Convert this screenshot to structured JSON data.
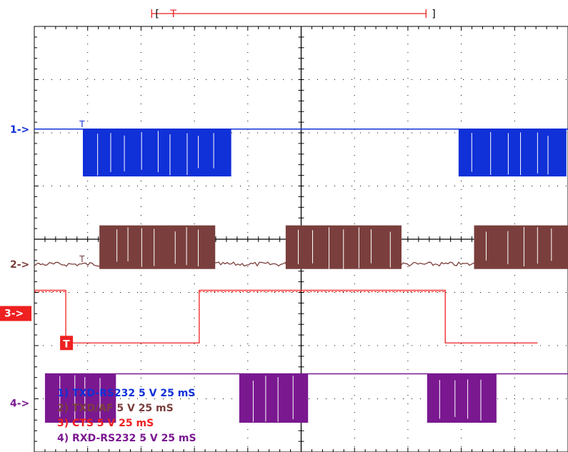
{
  "chart_data": {
    "type": "line",
    "title": "",
    "x_divisions": 10,
    "y_divisions": 8,
    "grid": true,
    "trigger_marker": "T",
    "time_unit": "mS",
    "series": [
      {
        "name": "TXD-RS232",
        "marker_label": "1->",
        "legend": "1) TXD-RS232  5  V   25 mS",
        "color": "#1030d8",
        "level_div": 6.07,
        "high_div": 6.07,
        "low_div": 5.18,
        "x_start_div": 0.0,
        "x_end_div": 10.0,
        "bursts": [
          [
            0.91,
            3.69
          ],
          [
            7.95,
            9.97
          ]
        ],
        "idle": "high"
      },
      {
        "name": "TXD/AF",
        "marker_label": "2->",
        "legend": "2) TXD/AF  5  V   25 mS",
        "color": "#7a3f3c",
        "level_div": 3.53,
        "high_div": 4.26,
        "low_div": 3.44,
        "x_start_div": 0.0,
        "x_end_div": 10.0,
        "bursts": [
          [
            1.22,
            3.39
          ],
          [
            4.71,
            6.88
          ],
          [
            8.24,
            10.0
          ]
        ],
        "idle": "noise"
      },
      {
        "name": "CTS",
        "marker_label": "3->",
        "legend": "3) CTS  5  V   25 mS",
        "color": "#ee2020",
        "level_div": 2.61,
        "high_div": 3.04,
        "low_div": 2.05,
        "x_start_div": 0.0,
        "x_end_div": 9.43,
        "edges": [
          [
            0.0,
            "high"
          ],
          [
            0.59,
            "low"
          ],
          [
            3.09,
            "high"
          ],
          [
            7.7,
            "low"
          ]
        ],
        "idle": "high"
      },
      {
        "name": "RXD-RS232",
        "marker_label": "4->",
        "legend": "4) RXD-RS232  5  V   25 mS",
        "color": "#7a1890",
        "level_div": 0.92,
        "high_div": 1.47,
        "low_div": 0.55,
        "x_start_div": 0.2,
        "x_end_div": 10.0,
        "bursts": [
          [
            0.2,
            1.53
          ],
          [
            3.84,
            5.13
          ],
          [
            7.36,
            8.66
          ]
        ],
        "idle": "high"
      }
    ],
    "top_marker": {
      "left_bracket": "|-[",
      "label": "T",
      "right_bracket": "]",
      "x_start_div": 2.2,
      "x_end_div": 7.34,
      "color": "#ee2020"
    }
  }
}
